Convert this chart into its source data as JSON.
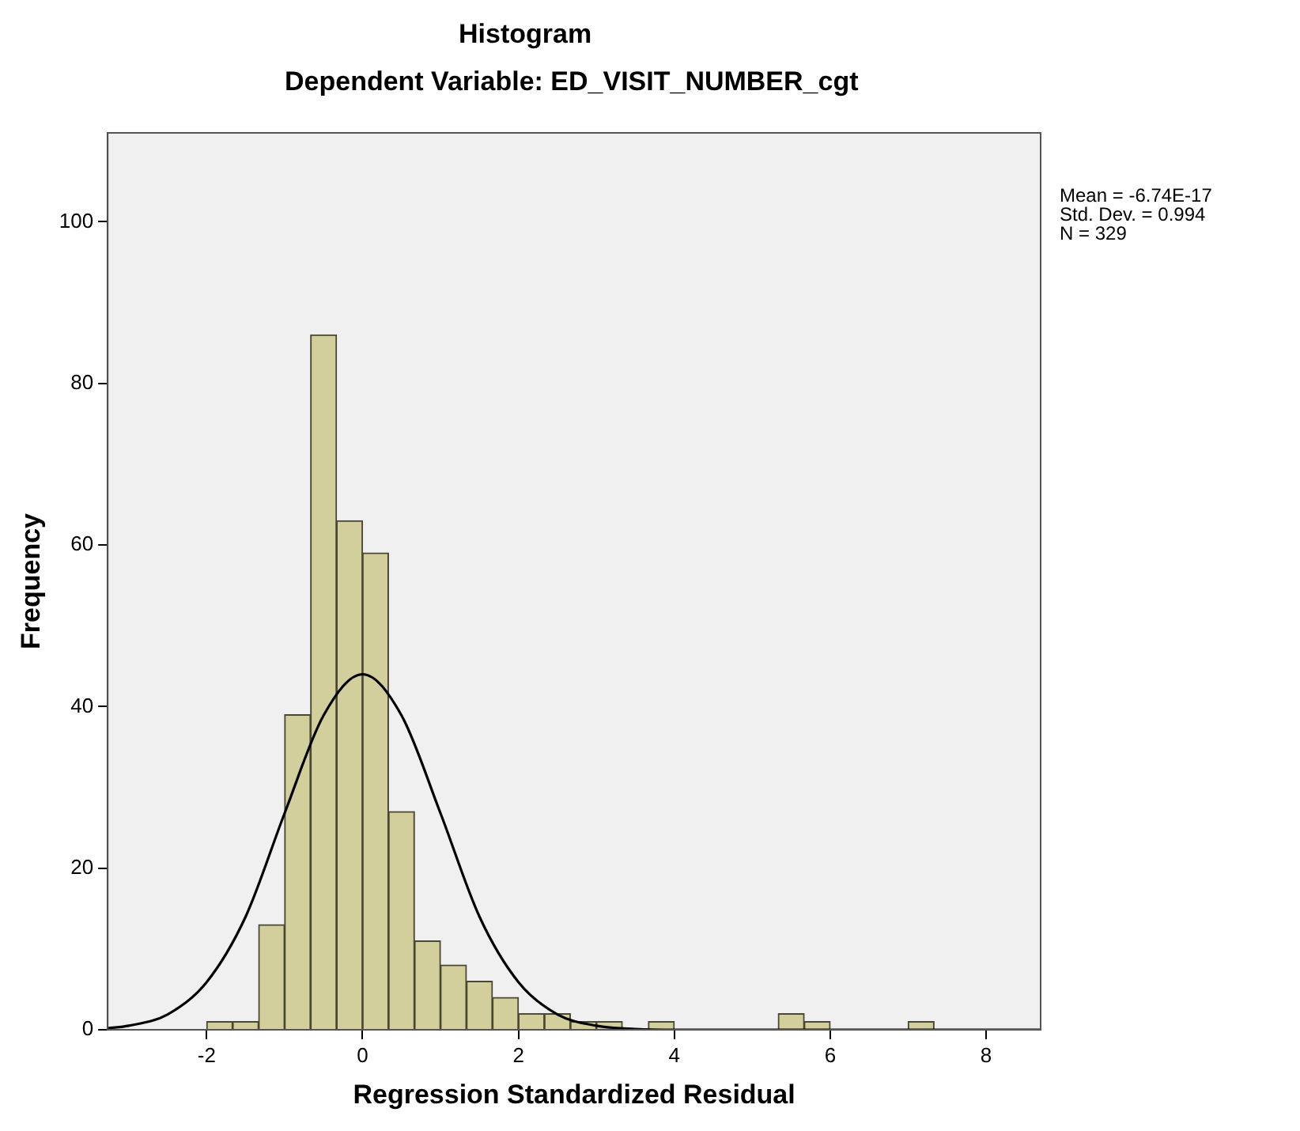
{
  "chart_data": {
    "type": "histogram",
    "title": "Histogram",
    "subtitle": "Dependent Variable: ED_VISIT_NUMBER_cgt",
    "xlabel": "Regression Standardized Residual",
    "ylabel": "Frequency",
    "annotations": [
      "Mean = -6.74E-17",
      "Std. Dev. = 0.994",
      "N = 329"
    ],
    "bins": [
      -2,
      -1.667,
      -1.333,
      -1,
      -0.667,
      -0.333,
      0,
      0.333,
      0.667,
      1,
      1.333,
      1.667,
      2,
      2.333,
      2.667,
      3,
      3.333,
      3.667,
      4,
      4.333,
      4.667,
      5,
      5.333,
      5.667,
      6,
      6.333,
      6.667,
      7,
      7.333
    ],
    "values": [
      1,
      1,
      13,
      39,
      86,
      63,
      59,
      27,
      11,
      8,
      6,
      4,
      2,
      2,
      1,
      1,
      0,
      1,
      0,
      0,
      0,
      0,
      2,
      1,
      0,
      0,
      0,
      1
    ],
    "color": "#d3cf9c",
    "series": [
      {
        "type": "line",
        "color": "#000000",
        "x": [
          -3.27,
          -3,
          -2.5,
          -2,
          -1.5,
          -1,
          -0.5,
          0,
          0.5,
          1,
          1.5,
          2,
          2.5,
          3,
          3.5,
          4,
          5,
          8.7
        ],
        "values": [
          0.2,
          0.5,
          1.9,
          5.9,
          14,
          26.8,
          38.9,
          44,
          38.9,
          26.8,
          14,
          5.9,
          1.9,
          0.5,
          0.1,
          0,
          0,
          0
        ]
      }
    ],
    "xlim": [
      -3.27,
      8.7
    ],
    "ylim": [
      0,
      111
    ],
    "xticks": [
      -2,
      0,
      2,
      4,
      6,
      8
    ],
    "yticks": [
      0,
      20,
      40,
      60,
      80,
      100
    ]
  }
}
